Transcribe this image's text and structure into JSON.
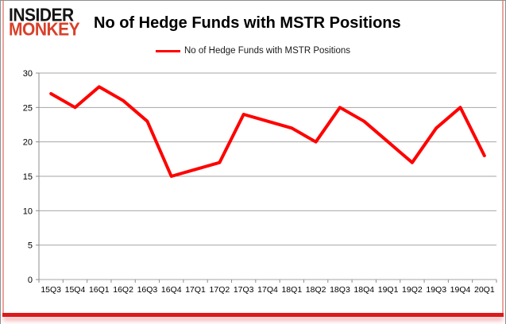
{
  "brand": {
    "line1": "INSIDER",
    "line2": "MONKEY"
  },
  "header": {
    "title": "No of Hedge Funds with MSTR Positions"
  },
  "legend": {
    "label": "No of Hedge Funds with MSTR Positions"
  },
  "colors": {
    "line": "#ff0000",
    "grid": "#a6a6a6",
    "axis": "#8c8c8c",
    "tick_text": "#000000",
    "brand_black": "#141414",
    "brand_red": "#d9402a",
    "accent_border": "#eba49b",
    "bottom_bar": "#dd1a1a"
  },
  "chart_data": {
    "type": "line",
    "title": "No of Hedge Funds with MSTR Positions",
    "categories": [
      "15Q3",
      "15Q4",
      "16Q1",
      "16Q2",
      "16Q3",
      "16Q4",
      "17Q1",
      "17Q2",
      "17Q3",
      "17Q4",
      "18Q1",
      "18Q2",
      "18Q3",
      "18Q4",
      "19Q1",
      "19Q2",
      "19Q3",
      "19Q4",
      "20Q1"
    ],
    "series": [
      {
        "name": "No of Hedge Funds with MSTR Positions",
        "values": [
          27,
          25,
          28,
          26,
          23,
          15,
          16,
          17,
          24,
          23,
          22,
          20,
          25,
          23,
          20,
          17,
          22,
          25,
          18
        ]
      }
    ],
    "xlabel": "",
    "ylabel": "",
    "ylim": [
      0,
      30
    ],
    "yticks": [
      0,
      5,
      10,
      15,
      20,
      25,
      30
    ],
    "grid": true,
    "legend_position": "top-center"
  }
}
